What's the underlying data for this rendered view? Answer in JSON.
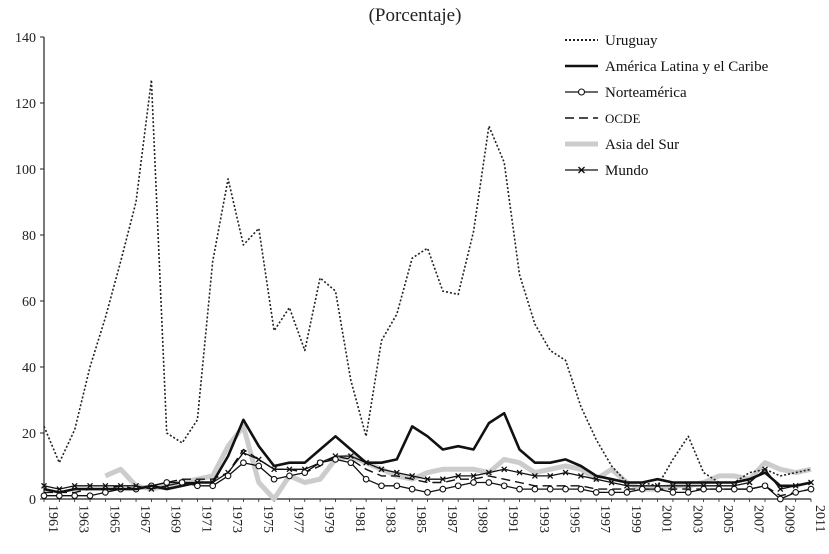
{
  "chart_data": {
    "type": "line",
    "title": "(Porcentaje)",
    "xlabel": "",
    "ylabel": "",
    "ylim": [
      0,
      140
    ],
    "yticks": [
      0,
      20,
      40,
      60,
      80,
      100,
      120,
      140
    ],
    "xlim": [
      1961,
      2011
    ],
    "xticks": [
      1961,
      1963,
      1965,
      1967,
      1969,
      1971,
      1973,
      1975,
      1977,
      1979,
      1981,
      1983,
      1985,
      1987,
      1989,
      1991,
      1993,
      1995,
      1997,
      1999,
      2001,
      2003,
      2005,
      2007,
      2009,
      2011
    ],
    "grid": false,
    "legend_position": "top-right",
    "x": [
      1961,
      1962,
      1963,
      1964,
      1965,
      1966,
      1967,
      1968,
      1969,
      1970,
      1971,
      1972,
      1973,
      1974,
      1975,
      1976,
      1977,
      1978,
      1979,
      1980,
      1981,
      1982,
      1983,
      1984,
      1985,
      1986,
      1987,
      1988,
      1989,
      1990,
      1991,
      1992,
      1993,
      1994,
      1995,
      1996,
      1997,
      1998,
      1999,
      2000,
      2001,
      2002,
      2003,
      2004,
      2005,
      2006,
      2007,
      2008,
      2009,
      2010,
      2011
    ],
    "series": [
      {
        "name": "Uruguay",
        "style": "dotted",
        "color": "#222222",
        "values": [
          22,
          11,
          21,
          40,
          55,
          72,
          90,
          127,
          20,
          17,
          24,
          72,
          97,
          77,
          82,
          51,
          58,
          45,
          67,
          63,
          36,
          19,
          48,
          56,
          73,
          76,
          63,
          62,
          81,
          113,
          102,
          68,
          53,
          45,
          42,
          28,
          18,
          10,
          5,
          5,
          4,
          12,
          19,
          8,
          5,
          5,
          8,
          9,
          7,
          8,
          9
        ]
      },
      {
        "name": "América Latina y el Caribe",
        "style": "solid-thick",
        "color": "#111111",
        "values": [
          3,
          2,
          3,
          3,
          3,
          3,
          3,
          4,
          3,
          4,
          5,
          5,
          13,
          24,
          16,
          10,
          11,
          11,
          15,
          19,
          15,
          11,
          11,
          12,
          22,
          19,
          15,
          16,
          15,
          23,
          26,
          15,
          11,
          11,
          12,
          10,
          7,
          6,
          5,
          5,
          6,
          5,
          5,
          5,
          5,
          5,
          6,
          8,
          4,
          4,
          5
        ]
      },
      {
        "name": "Norteamérica",
        "style": "solid-circle",
        "color": "#111111",
        "values": [
          1,
          1,
          1,
          1,
          2,
          3,
          3,
          4,
          5,
          5,
          4,
          4,
          7,
          11,
          10,
          6,
          7,
          8,
          11,
          12,
          11,
          6,
          4,
          4,
          3,
          2,
          3,
          4,
          5,
          5,
          4,
          3,
          3,
          3,
          3,
          3,
          2,
          2,
          2,
          3,
          3,
          2,
          2,
          3,
          3,
          3,
          3,
          4,
          0,
          2,
          3
        ]
      },
      {
        "name": "OCDE",
        "style": "dashed",
        "color": "#111111",
        "values": [
          2,
          2,
          2,
          3,
          3,
          4,
          3,
          4,
          5,
          6,
          6,
          6,
          8,
          15,
          12,
          9,
          9,
          8,
          10,
          13,
          12,
          9,
          7,
          7,
          6,
          5,
          5,
          6,
          6,
          7,
          6,
          5,
          4,
          4,
          4,
          4,
          3,
          3,
          3,
          3,
          3,
          3,
          3,
          3,
          3,
          3,
          3,
          4,
          1,
          2,
          3
        ]
      },
      {
        "name": "Asia del Sur",
        "style": "gray-thick",
        "color": "#cccccc",
        "values": [
          null,
          null,
          null,
          null,
          7,
          9,
          4,
          3,
          4,
          5,
          6,
          7,
          16,
          22,
          5,
          0,
          7,
          5,
          6,
          12,
          13,
          11,
          9,
          7,
          6,
          8,
          9,
          9,
          9,
          8,
          12,
          11,
          8,
          9,
          10,
          9,
          6,
          9,
          5,
          3,
          3,
          4,
          4,
          5,
          7,
          7,
          6,
          11,
          9,
          8,
          9
        ]
      },
      {
        "name": "Mundo",
        "style": "solid-x",
        "color": "#111111",
        "values": [
          4,
          3,
          4,
          4,
          4,
          4,
          4,
          3,
          4,
          5,
          5,
          5,
          8,
          14,
          12,
          9,
          9,
          9,
          11,
          13,
          13,
          11,
          9,
          8,
          7,
          6,
          6,
          7,
          7,
          8,
          9,
          8,
          7,
          7,
          8,
          7,
          6,
          5,
          4,
          4,
          4,
          4,
          4,
          4,
          4,
          4,
          5,
          9,
          3,
          4,
          5
        ]
      }
    ]
  }
}
